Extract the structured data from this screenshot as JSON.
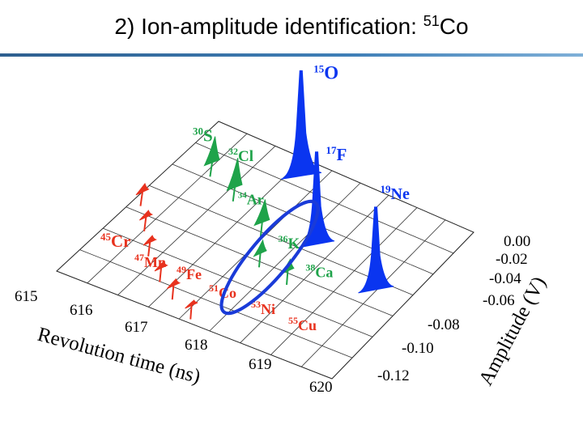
{
  "title": {
    "prefix": "2)  Ion-amplitude identification: ",
    "mass": "51",
    "element": "Co"
  },
  "colors": {
    "blue": "#0a35f0",
    "green": "#1fa34a",
    "red": "#e8321e",
    "ellipse": "#1a3bd8",
    "rule": "#3f7fb7"
  },
  "chart_data": {
    "type": "3d-waterfall",
    "title": "Ion-amplitude identification: 51Co",
    "xlabel": "Revolution time (ns)",
    "ylabel": "Amplitude (V)",
    "x_ticks": [
      "615",
      "616",
      "617",
      "618",
      "619",
      "620"
    ],
    "x_range": [
      615,
      620
    ],
    "y_ticks": [
      "0.00",
      "-0.02",
      "-0.04",
      "-0.06",
      "-0.08",
      "-0.10",
      "-0.12"
    ],
    "y_range": [
      -0.12,
      0.0
    ],
    "series": [
      {
        "name": "blue",
        "color": "blue",
        "ions": [
          {
            "mass": "15",
            "element": "O"
          },
          {
            "mass": "17",
            "element": "F"
          },
          {
            "mass": "19",
            "element": "Ne"
          }
        ]
      },
      {
        "name": "green",
        "color": "green",
        "ions": [
          {
            "mass": "30",
            "element": "S"
          },
          {
            "mass": "32",
            "element": "Cl"
          },
          {
            "mass": "34",
            "element": "Ar"
          },
          {
            "mass": "36",
            "element": "K"
          },
          {
            "mass": "38",
            "element": "Ca"
          }
        ]
      },
      {
        "name": "red",
        "color": "red",
        "ions": [
          {
            "mass": "45",
            "element": "Cr"
          },
          {
            "mass": "47",
            "element": "Mn"
          },
          {
            "mass": "49",
            "element": "Fe"
          },
          {
            "mass": "51",
            "element": "Co"
          },
          {
            "mass": "53",
            "element": "Ni"
          },
          {
            "mass": "55",
            "element": "Cu"
          }
        ]
      }
    ],
    "highlight": {
      "mass": "51",
      "element": "Co"
    }
  }
}
